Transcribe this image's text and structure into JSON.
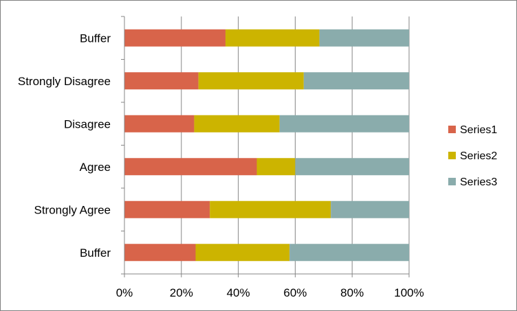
{
  "chart_data": {
    "type": "bar",
    "orientation": "horizontal",
    "stacking": "percent",
    "categories": [
      "Buffer",
      "Strongly Agree",
      "Agree",
      "Disagree",
      "Strongly Disagree",
      "Buffer"
    ],
    "series": [
      {
        "name": "Series1",
        "color": "#d8644a",
        "values": [
          25,
          30,
          46.5,
          24.5,
          26,
          35.5
        ]
      },
      {
        "name": "Series2",
        "color": "#ccb400",
        "values": [
          33,
          42.5,
          13.5,
          30,
          37,
          33
        ]
      },
      {
        "name": "Series3",
        "color": "#8aacac",
        "values": [
          42,
          27.5,
          40,
          45.5,
          37,
          31.5
        ]
      }
    ],
    "x_ticks": [
      "0%",
      "20%",
      "40%",
      "60%",
      "80%",
      "100%"
    ],
    "xlim": [
      0,
      100
    ],
    "grid": "vertical",
    "legend_position": "right",
    "title": "",
    "xlabel": "",
    "ylabel": ""
  }
}
